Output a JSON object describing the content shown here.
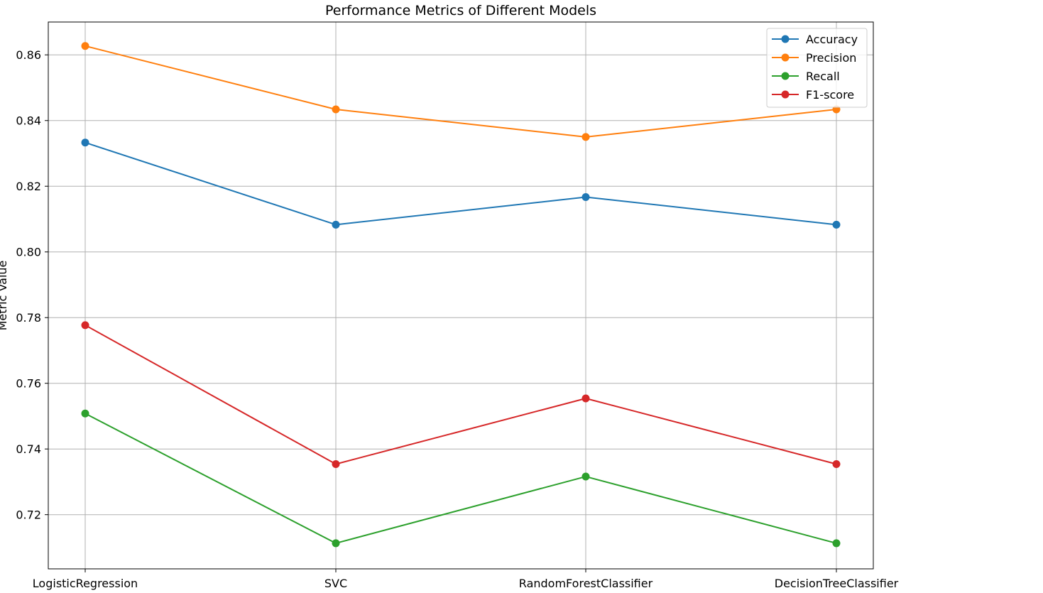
{
  "chart_data": {
    "type": "line",
    "title": "Performance Metrics of Different Models",
    "xlabel": "",
    "ylabel": "Metric Value",
    "categories": [
      "LogisticRegression",
      "SVC",
      "RandomForestClassifier",
      "DecisionTreeClassifier"
    ],
    "ylim": [
      0.7035,
      0.87
    ],
    "yticks": [
      0.72,
      0.74,
      0.76,
      0.78,
      0.8,
      0.82,
      0.84,
      0.86
    ],
    "ytick_labels": [
      "0.72",
      "0.74",
      "0.76",
      "0.78",
      "0.80",
      "0.82",
      "0.84",
      "0.86"
    ],
    "grid": true,
    "legend_position": "top-right",
    "marker": "circle",
    "series": [
      {
        "name": "Accuracy",
        "color": "#1f77b4",
        "values": [
          0.8333,
          0.8083,
          0.8167,
          0.8083
        ]
      },
      {
        "name": "Precision",
        "color": "#ff7f0e",
        "values": [
          0.8627,
          0.8434,
          0.835,
          0.8434
        ]
      },
      {
        "name": "Recall",
        "color": "#2ca02c",
        "values": [
          0.7508,
          0.7113,
          0.7316,
          0.7113
        ]
      },
      {
        "name": "F1-score",
        "color": "#d62728",
        "values": [
          0.7777,
          0.7354,
          0.7554,
          0.7354
        ]
      }
    ]
  }
}
